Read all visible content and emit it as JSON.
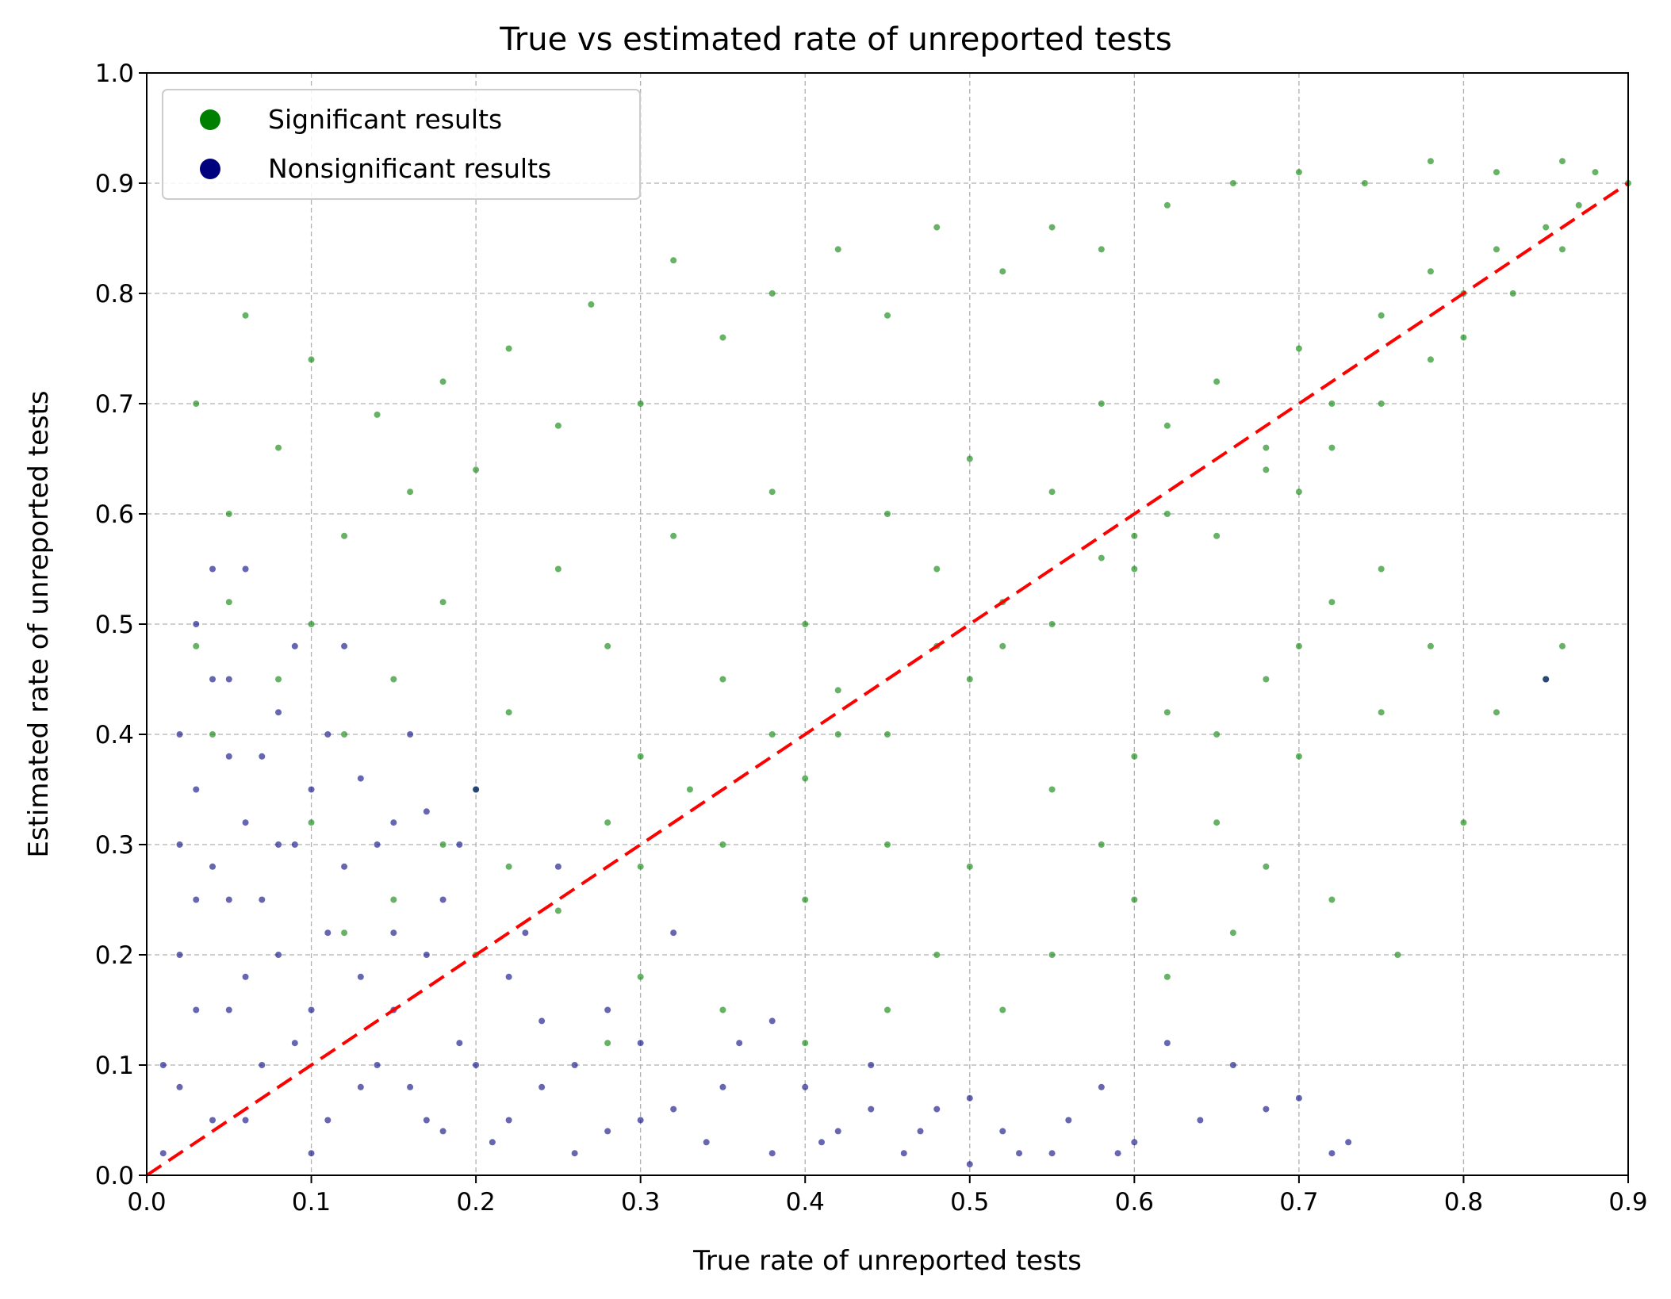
{
  "chart_data": {
    "type": "scatter",
    "title": "True vs estimated rate of unreported tests",
    "xlabel": "True rate of unreported tests",
    "ylabel": "Estimated rate of unreported tests",
    "xlim": [
      0.0,
      0.9
    ],
    "ylim": [
      0.0,
      1.0
    ],
    "x_ticks": [
      "0.0",
      "0.1",
      "0.2",
      "0.3",
      "0.4",
      "0.5",
      "0.6",
      "0.7",
      "0.8",
      "0.9"
    ],
    "y_ticks": [
      "0.0",
      "0.1",
      "0.2",
      "0.3",
      "0.4",
      "0.5",
      "0.6",
      "0.7",
      "0.8",
      "0.9",
      "1.0"
    ],
    "grid": true,
    "legend_position": "top-left",
    "series": [
      {
        "name": "Significant results",
        "color": "#008000",
        "kind": "scatter",
        "points": [
          [
            0.03,
            0.7
          ],
          [
            0.05,
            0.6
          ],
          [
            0.06,
            0.78
          ],
          [
            0.08,
            0.66
          ],
          [
            0.1,
            0.74
          ],
          [
            0.12,
            0.58
          ],
          [
            0.14,
            0.69
          ],
          [
            0.16,
            0.62
          ],
          [
            0.18,
            0.72
          ],
          [
            0.2,
            0.64
          ],
          [
            0.22,
            0.75
          ],
          [
            0.25,
            0.68
          ],
          [
            0.27,
            0.79
          ],
          [
            0.3,
            0.7
          ],
          [
            0.32,
            0.83
          ],
          [
            0.35,
            0.76
          ],
          [
            0.38,
            0.8
          ],
          [
            0.42,
            0.84
          ],
          [
            0.45,
            0.78
          ],
          [
            0.48,
            0.86
          ],
          [
            0.52,
            0.82
          ],
          [
            0.55,
            0.86
          ],
          [
            0.58,
            0.84
          ],
          [
            0.62,
            0.88
          ],
          [
            0.66,
            0.9
          ],
          [
            0.7,
            0.91
          ],
          [
            0.74,
            0.9
          ],
          [
            0.78,
            0.92
          ],
          [
            0.82,
            0.91
          ],
          [
            0.86,
            0.92
          ],
          [
            0.88,
            0.91
          ],
          [
            0.9,
            0.9
          ],
          [
            0.1,
            0.5
          ],
          [
            0.12,
            0.4
          ],
          [
            0.15,
            0.45
          ],
          [
            0.18,
            0.52
          ],
          [
            0.2,
            0.35
          ],
          [
            0.22,
            0.42
          ],
          [
            0.25,
            0.55
          ],
          [
            0.28,
            0.48
          ],
          [
            0.3,
            0.38
          ],
          [
            0.32,
            0.58
          ],
          [
            0.35,
            0.45
          ],
          [
            0.38,
            0.62
          ],
          [
            0.4,
            0.5
          ],
          [
            0.42,
            0.4
          ],
          [
            0.45,
            0.6
          ],
          [
            0.48,
            0.55
          ],
          [
            0.5,
            0.65
          ],
          [
            0.52,
            0.48
          ],
          [
            0.55,
            0.62
          ],
          [
            0.58,
            0.7
          ],
          [
            0.6,
            0.58
          ],
          [
            0.62,
            0.68
          ],
          [
            0.65,
            0.72
          ],
          [
            0.68,
            0.66
          ],
          [
            0.7,
            0.75
          ],
          [
            0.72,
            0.7
          ],
          [
            0.75,
            0.78
          ],
          [
            0.78,
            0.82
          ],
          [
            0.8,
            0.8
          ],
          [
            0.82,
            0.84
          ],
          [
            0.85,
            0.86
          ],
          [
            0.87,
            0.88
          ],
          [
            0.2,
            0.2
          ],
          [
            0.22,
            0.28
          ],
          [
            0.25,
            0.24
          ],
          [
            0.28,
            0.32
          ],
          [
            0.3,
            0.28
          ],
          [
            0.33,
            0.35
          ],
          [
            0.35,
            0.3
          ],
          [
            0.38,
            0.4
          ],
          [
            0.4,
            0.36
          ],
          [
            0.42,
            0.44
          ],
          [
            0.45,
            0.4
          ],
          [
            0.48,
            0.48
          ],
          [
            0.5,
            0.45
          ],
          [
            0.52,
            0.52
          ],
          [
            0.55,
            0.5
          ],
          [
            0.58,
            0.56
          ],
          [
            0.6,
            0.55
          ],
          [
            0.62,
            0.6
          ],
          [
            0.65,
            0.58
          ],
          [
            0.68,
            0.64
          ],
          [
            0.7,
            0.62
          ],
          [
            0.72,
            0.66
          ],
          [
            0.75,
            0.7
          ],
          [
            0.78,
            0.74
          ],
          [
            0.8,
            0.76
          ],
          [
            0.83,
            0.8
          ],
          [
            0.86,
            0.84
          ],
          [
            0.4,
            0.25
          ],
          [
            0.45,
            0.3
          ],
          [
            0.5,
            0.28
          ],
          [
            0.55,
            0.35
          ],
          [
            0.58,
            0.3
          ],
          [
            0.6,
            0.38
          ],
          [
            0.62,
            0.42
          ],
          [
            0.65,
            0.4
          ],
          [
            0.68,
            0.45
          ],
          [
            0.7,
            0.48
          ],
          [
            0.72,
            0.52
          ],
          [
            0.75,
            0.55
          ],
          [
            0.55,
            0.2
          ],
          [
            0.6,
            0.25
          ],
          [
            0.65,
            0.32
          ],
          [
            0.7,
            0.38
          ],
          [
            0.75,
            0.42
          ],
          [
            0.78,
            0.48
          ],
          [
            0.72,
            0.25
          ],
          [
            0.76,
            0.2
          ],
          [
            0.8,
            0.32
          ],
          [
            0.82,
            0.42
          ],
          [
            0.85,
            0.45
          ],
          [
            0.86,
            0.48
          ],
          [
            0.15,
            0.25
          ],
          [
            0.18,
            0.3
          ],
          [
            0.12,
            0.22
          ],
          [
            0.1,
            0.32
          ],
          [
            0.08,
            0.45
          ],
          [
            0.05,
            0.52
          ],
          [
            0.04,
            0.4
          ],
          [
            0.03,
            0.48
          ],
          [
            0.35,
            0.15
          ],
          [
            0.4,
            0.12
          ],
          [
            0.45,
            0.15
          ],
          [
            0.48,
            0.2
          ],
          [
            0.52,
            0.15
          ],
          [
            0.3,
            0.18
          ],
          [
            0.28,
            0.12
          ],
          [
            0.62,
            0.18
          ],
          [
            0.66,
            0.22
          ],
          [
            0.68,
            0.28
          ]
        ]
      },
      {
        "name": "Nonsignificant results",
        "color": "#00007f",
        "kind": "scatter",
        "points": [
          [
            0.01,
            0.02
          ],
          [
            0.02,
            0.08
          ],
          [
            0.02,
            0.2
          ],
          [
            0.03,
            0.35
          ],
          [
            0.03,
            0.5
          ],
          [
            0.04,
            0.28
          ],
          [
            0.04,
            0.45
          ],
          [
            0.05,
            0.15
          ],
          [
            0.05,
            0.38
          ],
          [
            0.06,
            0.55
          ],
          [
            0.06,
            0.05
          ],
          [
            0.07,
            0.25
          ],
          [
            0.08,
            0.42
          ],
          [
            0.09,
            0.12
          ],
          [
            0.1,
            0.35
          ],
          [
            0.1,
            0.02
          ],
          [
            0.11,
            0.22
          ],
          [
            0.12,
            0.48
          ],
          [
            0.13,
            0.08
          ],
          [
            0.14,
            0.3
          ],
          [
            0.15,
            0.15
          ],
          [
            0.16,
            0.4
          ],
          [
            0.17,
            0.05
          ],
          [
            0.18,
            0.25
          ],
          [
            0.19,
            0.12
          ],
          [
            0.2,
            0.35
          ],
          [
            0.21,
            0.03
          ],
          [
            0.22,
            0.18
          ],
          [
            0.24,
            0.08
          ],
          [
            0.25,
            0.28
          ],
          [
            0.26,
            0.02
          ],
          [
            0.28,
            0.15
          ],
          [
            0.3,
            0.05
          ],
          [
            0.32,
            0.22
          ],
          [
            0.34,
            0.03
          ],
          [
            0.36,
            0.12
          ],
          [
            0.38,
            0.02
          ],
          [
            0.4,
            0.08
          ],
          [
            0.42,
            0.04
          ],
          [
            0.44,
            0.1
          ],
          [
            0.46,
            0.02
          ],
          [
            0.48,
            0.06
          ],
          [
            0.5,
            0.01
          ],
          [
            0.52,
            0.04
          ],
          [
            0.55,
            0.02
          ],
          [
            0.58,
            0.08
          ],
          [
            0.6,
            0.03
          ],
          [
            0.62,
            0.12
          ],
          [
            0.64,
            0.05
          ],
          [
            0.66,
            0.1
          ],
          [
            0.68,
            0.06
          ],
          [
            0.7,
            0.07
          ],
          [
            0.72,
            0.02
          ],
          [
            0.73,
            0.03
          ],
          [
            0.85,
            0.45
          ],
          [
            0.01,
            0.1
          ],
          [
            0.02,
            0.3
          ],
          [
            0.03,
            0.15
          ],
          [
            0.04,
            0.05
          ],
          [
            0.05,
            0.25
          ],
          [
            0.06,
            0.32
          ],
          [
            0.07,
            0.1
          ],
          [
            0.08,
            0.2
          ],
          [
            0.09,
            0.3
          ],
          [
            0.1,
            0.15
          ],
          [
            0.11,
            0.05
          ],
          [
            0.12,
            0.28
          ],
          [
            0.13,
            0.18
          ],
          [
            0.14,
            0.1
          ],
          [
            0.15,
            0.32
          ],
          [
            0.16,
            0.08
          ],
          [
            0.17,
            0.2
          ],
          [
            0.18,
            0.04
          ],
          [
            0.19,
            0.3
          ],
          [
            0.2,
            0.1
          ],
          [
            0.22,
            0.05
          ],
          [
            0.23,
            0.22
          ],
          [
            0.24,
            0.14
          ],
          [
            0.26,
            0.1
          ],
          [
            0.28,
            0.04
          ],
          [
            0.3,
            0.12
          ],
          [
            0.32,
            0.06
          ],
          [
            0.35,
            0.08
          ],
          [
            0.38,
            0.14
          ],
          [
            0.41,
            0.03
          ],
          [
            0.44,
            0.06
          ],
          [
            0.47,
            0.04
          ],
          [
            0.5,
            0.07
          ],
          [
            0.53,
            0.02
          ],
          [
            0.56,
            0.05
          ],
          [
            0.59,
            0.02
          ],
          [
            0.02,
            0.4
          ],
          [
            0.03,
            0.25
          ],
          [
            0.04,
            0.55
          ],
          [
            0.05,
            0.45
          ],
          [
            0.06,
            0.18
          ],
          [
            0.07,
            0.38
          ],
          [
            0.08,
            0.3
          ],
          [
            0.09,
            0.48
          ],
          [
            0.11,
            0.4
          ],
          [
            0.13,
            0.36
          ],
          [
            0.15,
            0.22
          ],
          [
            0.17,
            0.33
          ]
        ]
      },
      {
        "name": "",
        "kind": "line",
        "style": "dashed",
        "color": "#ff0000",
        "x": [
          0.0,
          0.9
        ],
        "y": [
          0.0,
          0.9
        ]
      }
    ]
  },
  "legend": {
    "items": [
      {
        "label": "Significant results",
        "color": "#008000"
      },
      {
        "label": "Nonsignificant results",
        "color": "#00007f"
      }
    ]
  }
}
